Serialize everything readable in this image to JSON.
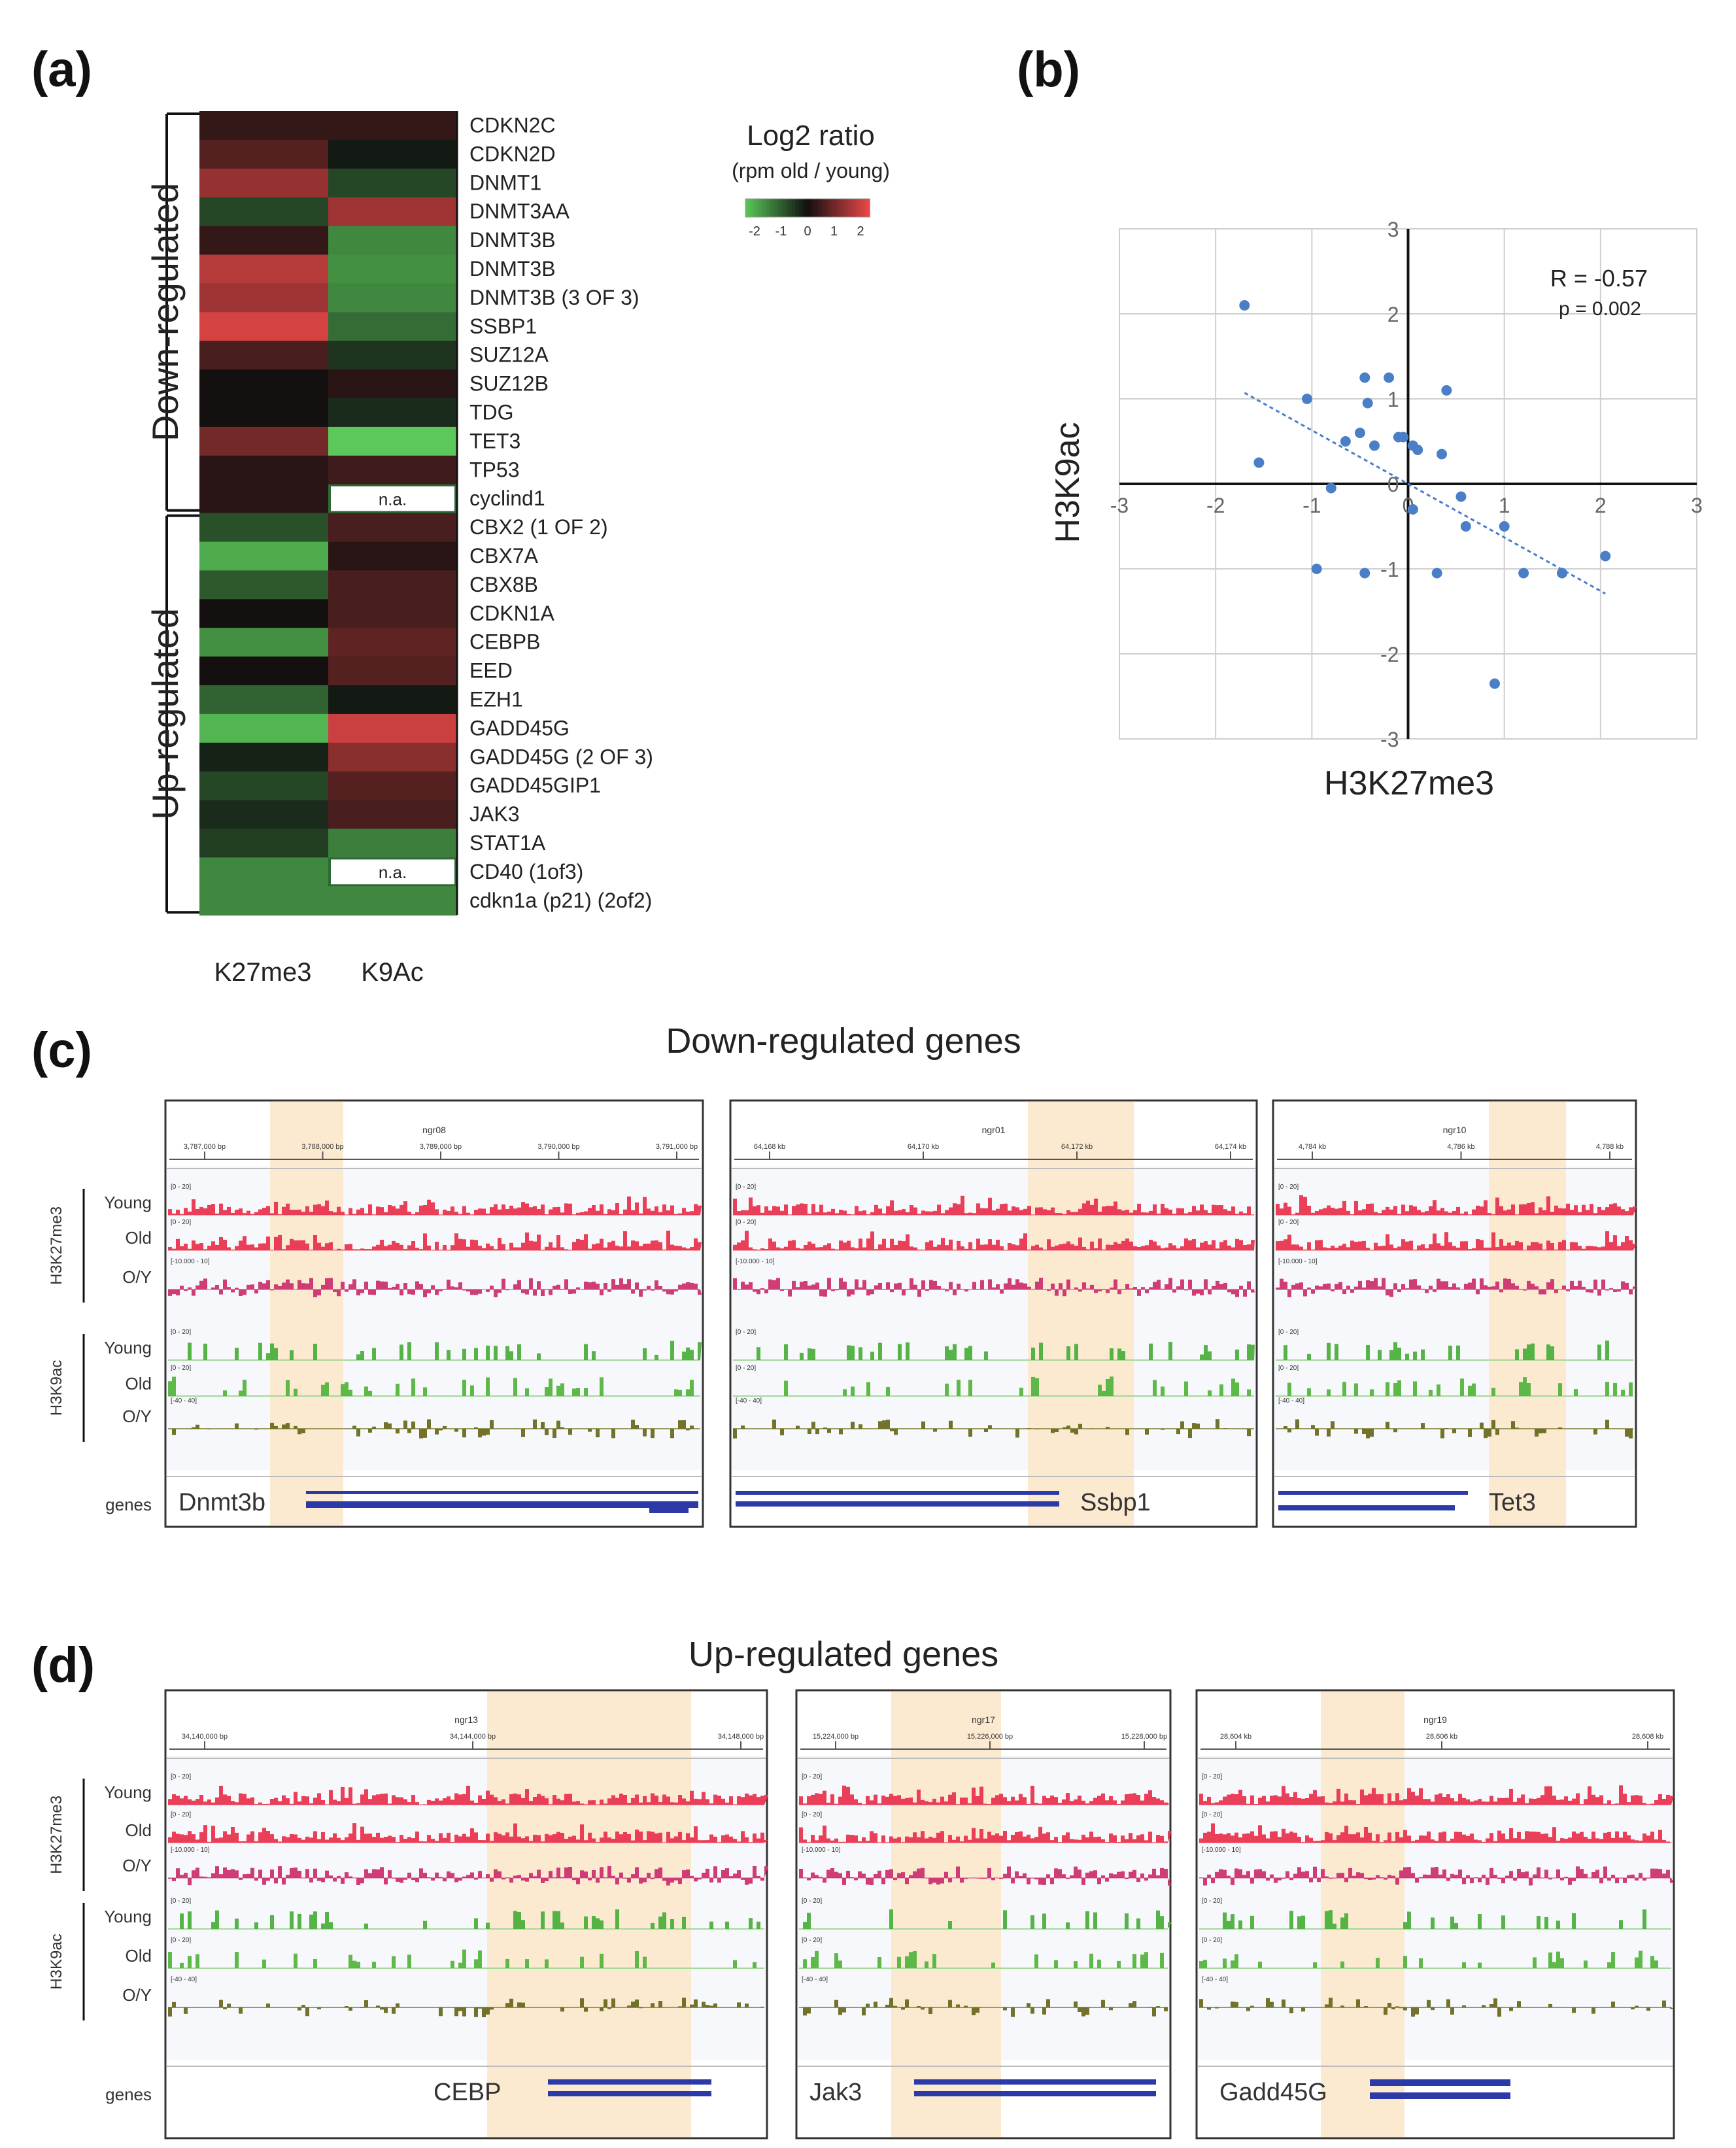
{
  "panels": {
    "a": {
      "label": "(a)",
      "row_groups": [
        {
          "label": "Down-regulated",
          "count": 14
        },
        {
          "label": "Up-regulated",
          "count": 14
        }
      ],
      "columns": [
        "K27me3",
        "K9Ac"
      ],
      "rows": [
        {
          "gene": "CDKN2C",
          "k27": 0.3,
          "k9": 0.3
        },
        {
          "gene": "CDKN2D",
          "k27": 0.6,
          "k9": -0.1
        },
        {
          "gene": "DNMT1",
          "k27": 1.2,
          "k9": -0.6
        },
        {
          "gene": "DNMT3AA",
          "k27": -0.6,
          "k9": 1.3
        },
        {
          "gene": "DNMT3B",
          "k27": 0.3,
          "k9": -1.3
        },
        {
          "gene": "DNMT3B",
          "k27": 1.5,
          "k9": -1.4
        },
        {
          "gene": "DNMT3B (3 OF 3)",
          "k27": 1.3,
          "k9": -1.3
        },
        {
          "gene": "SSBP1",
          "k27": 1.8,
          "k9": -1.0
        },
        {
          "gene": "SUZ12A",
          "k27": 0.5,
          "k9": -0.4
        },
        {
          "gene": "SUZ12B",
          "k27": 0.0,
          "k9": 0.2
        },
        {
          "gene": "TDG",
          "k27": 0.0,
          "k9": -0.3
        },
        {
          "gene": "TET3",
          "k27": 0.9,
          "k9": -2.0
        },
        {
          "gene": "TP53",
          "k27": 0.2,
          "k9": 0.4
        },
        {
          "gene": "cyclind1",
          "k27": 0.2,
          "k9": null
        },
        {
          "gene": "CBX2 (1 OF 2)",
          "k27": -0.7,
          "k9": 0.5
        },
        {
          "gene": "CBX7A",
          "k27": -1.7,
          "k9": 0.2
        },
        {
          "gene": "CBX8B",
          "k27": -0.8,
          "k9": 0.5
        },
        {
          "gene": "CDKN1A",
          "k27": 0.0,
          "k9": 0.5
        },
        {
          "gene": "CEBPB",
          "k27": -1.4,
          "k9": 0.7
        },
        {
          "gene": "EED",
          "k27": 0.0,
          "k9": 0.6
        },
        {
          "gene": "EZH1",
          "k27": -0.9,
          "k9": -0.1
        },
        {
          "gene": "GADD45G",
          "k27": -1.8,
          "k9": 1.7
        },
        {
          "gene": "GADD45G (2 OF 3)",
          "k27": -0.2,
          "k9": 1.1
        },
        {
          "gene": "GADD45GIP1",
          "k27": -0.6,
          "k9": 0.6
        },
        {
          "gene": "JAK3",
          "k27": -0.3,
          "k9": 0.5
        },
        {
          "gene": "STAT1A",
          "k27": -0.5,
          "k9": -1.2
        },
        {
          "gene": "CD40 (1of3)",
          "k27": -1.3,
          "k9": null
        },
        {
          "gene": "cdkn1a (p21) (2of2)",
          "k27": -1.3,
          "k9": -1.3
        }
      ],
      "na_label": "n.a.",
      "legend": {
        "title": "Log2 ratio",
        "subtitle": "(rpm old / young)",
        "ticks": [
          "-2",
          "-1",
          "0",
          "1",
          "2"
        ]
      }
    },
    "b": {
      "label": "(b)",
      "chart_data": {
        "type": "scatter",
        "xlabel": "H3K27me3",
        "ylabel": "H3K9ac",
        "xlim": [
          -3,
          3
        ],
        "ylim": [
          -3,
          3
        ],
        "xticks": [
          "-3",
          "-2",
          "-1",
          "0",
          "1",
          "2",
          "3"
        ],
        "yticks": [
          "3",
          "2",
          "1",
          "0",
          "-1",
          "-2",
          "-3"
        ],
        "grid": true,
        "annotation": "R = -0.57",
        "annotation2": "p = 0.002",
        "trendline": {
          "slope": -0.63,
          "intercept": 0.0
        },
        "points": [
          [
            -1.7,
            2.1
          ],
          [
            -1.55,
            0.25
          ],
          [
            -1.05,
            1.0
          ],
          [
            -0.95,
            -1.0
          ],
          [
            -0.8,
            -0.05
          ],
          [
            -0.65,
            0.5
          ],
          [
            -0.5,
            0.6
          ],
          [
            -0.45,
            1.25
          ],
          [
            -0.42,
            0.95
          ],
          [
            -0.35,
            0.45
          ],
          [
            -0.2,
            1.25
          ],
          [
            -0.1,
            0.55
          ],
          [
            -0.05,
            0.55
          ],
          [
            0.05,
            0.45
          ],
          [
            0.1,
            0.4
          ],
          [
            0.05,
            -0.3
          ],
          [
            0.3,
            -1.05
          ],
          [
            0.35,
            0.35
          ],
          [
            0.4,
            1.1
          ],
          [
            0.55,
            -0.15
          ],
          [
            0.6,
            -0.5
          ],
          [
            0.9,
            -2.35
          ],
          [
            1.0,
            -0.5
          ],
          [
            1.2,
            -1.05
          ],
          [
            1.6,
            -1.05
          ],
          [
            2.05,
            -0.85
          ],
          [
            -0.45,
            -1.05
          ]
        ]
      }
    },
    "c": {
      "label": "(c)",
      "title": "Down-regulated genes",
      "frames": [
        {
          "chrom": "ngr08",
          "ticks": [
            "3,787,000 bp",
            "3,788,000 bp",
            "3,789,000 bp",
            "3,790,000 bp",
            "3,791,000 bp"
          ],
          "gene": "Dnmt3b"
        },
        {
          "chrom": "ngr01",
          "ticks": [
            "64,168 kb",
            "64,170 kb",
            "64,172 kb",
            "64,174 kb"
          ],
          "gene": "Ssbp1"
        },
        {
          "chrom": "ngr10",
          "ticks": [
            "4,784 kb",
            "4,786 kb",
            "4,788 kb"
          ],
          "gene": "Tet3"
        }
      ]
    },
    "d": {
      "label": "(d)",
      "title": "Up-regulated genes",
      "frames": [
        {
          "chrom": "ngr13",
          "ticks": [
            "34,140,000 bp",
            "34,144,000 bp",
            "34,148,000 bp"
          ],
          "gene": "CEBP"
        },
        {
          "chrom": "ngr17",
          "ticks": [
            "15,224,000 bp",
            "15,226,000 bp",
            "15,228,000 bp"
          ],
          "gene": "Jak3"
        },
        {
          "chrom": "ngr19",
          "ticks": [
            "28,604 kb",
            "28,606 kb",
            "28,608 kb"
          ],
          "gene": "Gadd45G"
        }
      ]
    }
  },
  "tracks": {
    "groups": [
      "H3K27me3",
      "H3K9ac"
    ],
    "rows": [
      "Young",
      "Old",
      "O/Y",
      "Young",
      "Old",
      "O/Y"
    ],
    "genes_label": "genes",
    "ranges": [
      "[0 - 20]",
      "[0 - 20]",
      "[-10.000 - 10]",
      "[0 - 20]",
      "[0 - 20]",
      "[-40 - 40]"
    ]
  },
  "colors": {
    "k27_young": "#e8354f",
    "k27_old": "#e8354f",
    "k27_oy": "#cc3370",
    "k9_young": "#4caf3d",
    "k9_old": "#55b53f",
    "k9_oy": "#6a6a1f",
    "highlight": "#fbe6c8",
    "gene_blue": "#2c3aa8",
    "dot": "#4a7fc8"
  }
}
